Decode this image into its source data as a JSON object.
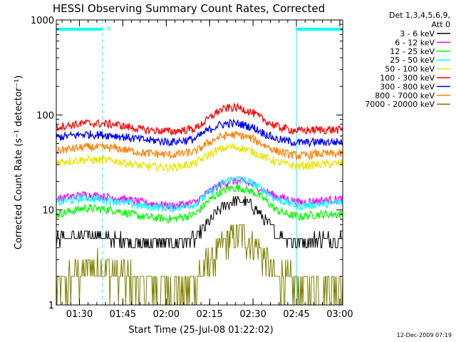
{
  "chart_data": {
    "type": "line",
    "title": "HESSI Observing Summary Count Rates, Corrected",
    "xlabel": "Start Time (25-Jul-08 01:22:02)",
    "ylabel": "Corrected Count Rate (s⁻¹ detector⁻¹)",
    "y_scale": "log",
    "ylim": [
      1,
      1000
    ],
    "xlim_minutes_after_01_22": [
      0,
      99
    ],
    "y_ticks": [
      {
        "value": 1,
        "label": "1"
      },
      {
        "value": 10,
        "label": "10"
      },
      {
        "value": 100,
        "label": "100"
      },
      {
        "value": 1000,
        "label": "1000"
      }
    ],
    "x_ticks": [
      {
        "value": 8,
        "label": "01:30"
      },
      {
        "value": 23,
        "label": "01:45"
      },
      {
        "value": 38,
        "label": "02:00"
      },
      {
        "value": 53,
        "label": "02:15"
      },
      {
        "value": 68,
        "label": "02:30"
      },
      {
        "value": 83,
        "label": "02:45"
      },
      {
        "value": 98,
        "label": "03:00"
      }
    ],
    "legend_header": [
      "Det 1,3,4,5,6,9,",
      "Att 0"
    ],
    "legend_position": "right",
    "night_segments": [
      [
        0,
        16
      ],
      [
        83,
        99
      ]
    ],
    "saa_label": "N",
    "vertical_markers": [
      0,
      16,
      83,
      99
    ],
    "series": [
      {
        "name": "3 - 6 keV",
        "color": "#000000",
        "x": [
          0,
          10,
          20,
          30,
          40,
          48,
          52,
          56,
          60,
          64,
          68,
          72,
          76,
          80,
          84,
          90,
          99
        ],
        "y": [
          5,
          5.5,
          5,
          4.5,
          4.5,
          5,
          7,
          10,
          12,
          12.5,
          11,
          8,
          5.5,
          5,
          4.5,
          5,
          5
        ]
      },
      {
        "name": "6 - 12 keV",
        "color": "#ff00ff",
        "x": [
          0,
          10,
          20,
          30,
          40,
          48,
          52,
          56,
          60,
          64,
          68,
          72,
          76,
          80,
          84,
          90,
          99
        ],
        "y": [
          13,
          14.5,
          13.5,
          12,
          11,
          12,
          15,
          18,
          20,
          20,
          18.5,
          16,
          14,
          13,
          12,
          12.5,
          13
        ]
      },
      {
        "name": "12 - 25 keV",
        "color": "#00ff00",
        "x": [
          0,
          10,
          20,
          30,
          40,
          48,
          52,
          56,
          60,
          64,
          68,
          72,
          76,
          80,
          84,
          90,
          99
        ],
        "y": [
          9,
          10.5,
          10,
          8.5,
          8,
          9,
          12,
          15,
          17,
          17,
          15.5,
          13,
          10,
          9,
          8.5,
          9,
          9
        ]
      },
      {
        "name": "25 - 50 keV",
        "color": "#00ffff",
        "x": [
          0,
          10,
          20,
          30,
          40,
          48,
          52,
          56,
          60,
          64,
          68,
          72,
          76,
          80,
          84,
          90,
          99
        ],
        "y": [
          12,
          13.5,
          12.5,
          11,
          10.5,
          11.5,
          14.5,
          18,
          21,
          21,
          19,
          16,
          13,
          12,
          11,
          11.5,
          12
        ]
      },
      {
        "name": "50 - 100 keV",
        "color": "#e6e600",
        "x": [
          0,
          10,
          20,
          30,
          40,
          48,
          52,
          56,
          60,
          64,
          68,
          72,
          76,
          80,
          84,
          90,
          99
        ],
        "y": [
          32,
          34,
          33,
          29,
          28,
          31,
          37,
          43,
          46,
          45,
          41,
          36,
          32,
          30,
          29,
          30,
          31
        ]
      },
      {
        "name": "100 - 300 keV",
        "color": "#ff0000",
        "x": [
          0,
          10,
          20,
          30,
          40,
          48,
          52,
          56,
          60,
          64,
          68,
          72,
          76,
          80,
          84,
          90,
          99
        ],
        "y": [
          75,
          82,
          80,
          70,
          67,
          72,
          88,
          110,
          120,
          118,
          105,
          88,
          76,
          71,
          68,
          70,
          70
        ]
      },
      {
        "name": "300 - 800 keV",
        "color": "#0000ff",
        "x": [
          0,
          10,
          20,
          30,
          40,
          48,
          52,
          56,
          60,
          64,
          68,
          72,
          76,
          80,
          84,
          90,
          99
        ],
        "y": [
          58,
          63,
          61,
          55,
          52,
          56,
          68,
          78,
          82,
          80,
          74,
          64,
          56,
          53,
          51,
          52,
          52
        ]
      },
      {
        "name": "800 - 7000 keV",
        "color": "#ff8000",
        "x": [
          0,
          10,
          20,
          30,
          40,
          48,
          52,
          56,
          60,
          64,
          68,
          72,
          76,
          80,
          84,
          90,
          99
        ],
        "y": [
          42,
          46,
          45,
          40,
          38,
          41,
          50,
          58,
          62,
          61,
          56,
          48,
          42,
          39,
          37,
          39,
          39
        ]
      },
      {
        "name": "7000 - 20000 keV",
        "color": "#808000",
        "x": [
          0,
          8,
          12,
          16,
          22,
          30,
          40,
          48,
          52,
          56,
          60,
          64,
          68,
          72,
          76,
          80,
          84,
          90,
          99
        ],
        "y": [
          1.6,
          2,
          2.5,
          2.5,
          2,
          1.6,
          1.5,
          1.8,
          2.5,
          3.5,
          5,
          5.5,
          4.5,
          3,
          2,
          1.8,
          1.5,
          1.6,
          1.7
        ]
      }
    ]
  },
  "footer": {
    "timestamp": "12-Dec-2009 07:19"
  }
}
